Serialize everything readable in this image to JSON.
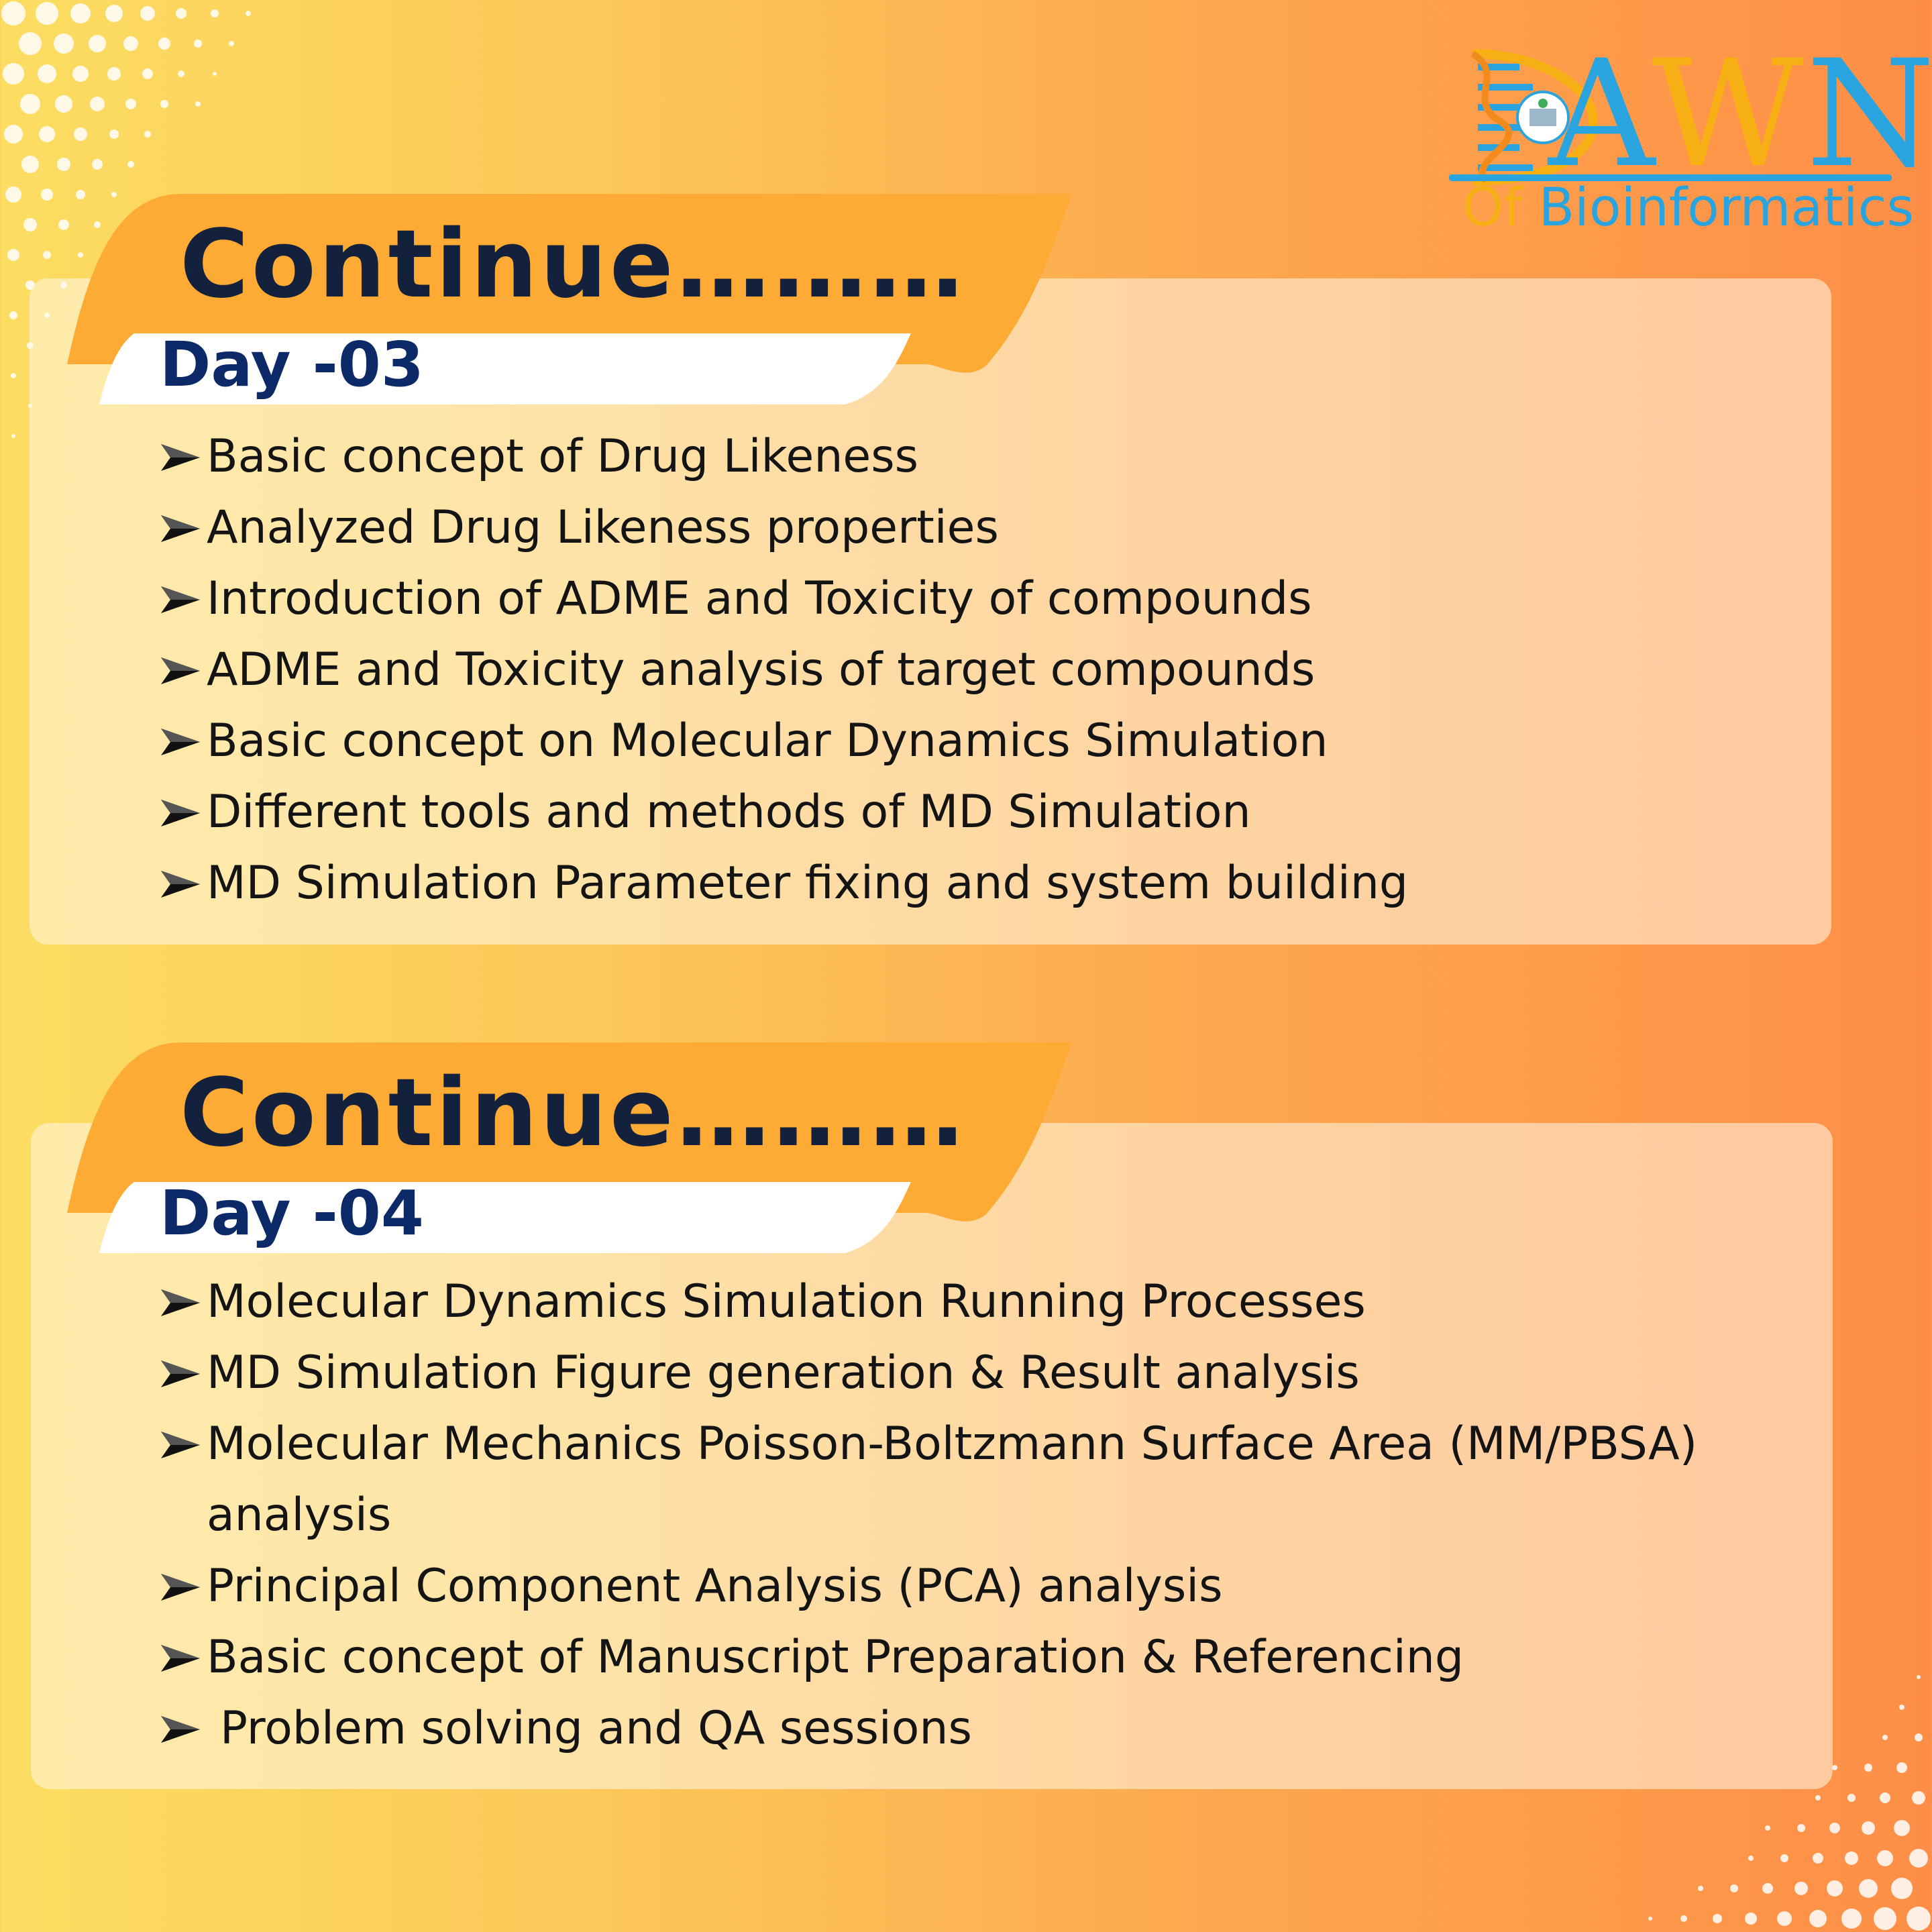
{
  "logo": {
    "letter_1": "A",
    "letter_2": "W",
    "letter_3": "N",
    "subtitle_of": "Of",
    "subtitle_main": "Bioinformatics"
  },
  "sections": [
    {
      "title": "Continue………",
      "day": "Day -03",
      "items": [
        "Basic concept of Drug Likeness",
        "Analyzed Drug Likeness properties",
        "Introduction of ADME and Toxicity of compounds",
        "ADME and Toxicity analysis of target compounds",
        "Basic concept on Molecular Dynamics Simulation",
        "Different tools and methods of MD Simulation",
        "MD Simulation Parameter fixing and system building"
      ]
    },
    {
      "title": "Continue………",
      "day": "Day -04",
      "items": [
        "Molecular Dynamics Simulation Running Processes",
        "MD Simulation Figure generation & Result analysis",
        "Molecular Mechanics Poisson-Boltzmann Surface Area (MM/PBSA)",
        "analysis",
        "Principal Component Analysis (PCA) analysis",
        "Basic concept of Manuscript Preparation & Referencing",
        "Problem solving and QA sessions"
      ]
    }
  ],
  "colors": {
    "banner_orange": "#fdab34",
    "title_navy": "#14213d",
    "day_blue": "#0d2a68",
    "logo_blue": "#2aa4df",
    "logo_gold": "#f7b014"
  }
}
